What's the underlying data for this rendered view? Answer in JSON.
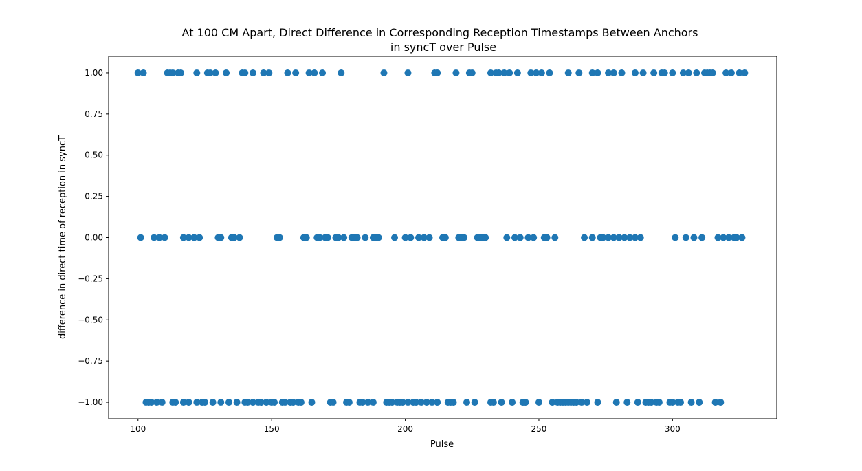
{
  "chart_data": {
    "type": "scatter",
    "title_line1": "At 100 CM Apart, Direct Difference in Corresponding Reception Timestamps Between Anchors",
    "title_line2": "in syncT over Pulse",
    "xlabel": "Pulse",
    "ylabel": "difference in direct time of reception in syncT",
    "xlim": [
      89,
      339
    ],
    "ylim": [
      -1.1,
      1.1
    ],
    "xticks": [
      100,
      150,
      200,
      250,
      300
    ],
    "xtick_labels": [
      "100",
      "150",
      "200",
      "250",
      "300"
    ],
    "yticks": [
      1.0,
      0.75,
      0.5,
      0.25,
      0.0,
      -0.25,
      -0.5,
      -0.75,
      -1.0
    ],
    "ytick_labels": [
      "1.00",
      "0.75",
      "0.50",
      "0.25",
      "0.00",
      "−0.25",
      "−0.50",
      "−0.75",
      "−1.00"
    ],
    "grid": false,
    "marker_color": "#1f77b4",
    "series": [
      {
        "x": [
          100,
          102,
          111,
          112,
          113,
          115,
          116,
          122,
          126,
          127,
          129,
          133,
          139,
          140,
          143,
          147,
          149,
          156,
          159,
          164,
          166,
          169,
          176,
          192,
          201,
          211,
          212,
          219,
          224,
          225,
          232,
          234,
          235,
          237,
          239,
          242,
          247,
          249,
          251,
          254,
          261,
          265,
          270,
          272,
          276,
          278,
          281,
          286,
          289,
          293,
          296,
          297,
          300,
          304,
          306,
          309,
          312,
          313,
          314,
          315,
          320,
          322,
          325,
          327
        ],
        "y": [
          1,
          1,
          1,
          1,
          1,
          1,
          1,
          1,
          1,
          1,
          1,
          1,
          1,
          1,
          1,
          1,
          1,
          1,
          1,
          1,
          1,
          1,
          1,
          1,
          1,
          1,
          1,
          1,
          1,
          1,
          1,
          1,
          1,
          1,
          1,
          1,
          1,
          1,
          1,
          1,
          1,
          1,
          1,
          1,
          1,
          1,
          1,
          1,
          1,
          1,
          1,
          1,
          1,
          1,
          1,
          1,
          1,
          1,
          1,
          1,
          1,
          1,
          1,
          1
        ]
      },
      {
        "x": [
          101,
          106,
          108,
          110,
          117,
          119,
          121,
          123,
          130,
          131,
          135,
          136,
          138,
          152,
          153,
          162,
          163,
          167,
          168,
          170,
          171,
          174,
          175,
          177,
          180,
          181,
          182,
          185,
          188,
          189,
          190,
          196,
          200,
          202,
          205,
          207,
          209,
          214,
          215,
          220,
          221,
          222,
          227,
          228,
          229,
          230,
          238,
          241,
          243,
          246,
          248,
          252,
          253,
          256,
          267,
          270,
          273,
          274,
          276,
          278,
          280,
          282,
          284,
          286,
          288,
          301,
          305,
          308,
          311,
          317,
          319,
          321,
          323,
          324,
          326
        ],
        "y": [
          0,
          0,
          0,
          0,
          0,
          0,
          0,
          0,
          0,
          0,
          0,
          0,
          0,
          0,
          0,
          0,
          0,
          0,
          0,
          0,
          0,
          0,
          0,
          0,
          0,
          0,
          0,
          0,
          0,
          0,
          0,
          0,
          0,
          0,
          0,
          0,
          0,
          0,
          0,
          0,
          0,
          0,
          0,
          0,
          0,
          0,
          0,
          0,
          0,
          0,
          0,
          0,
          0,
          0,
          0,
          0,
          0,
          0,
          0,
          0,
          0,
          0,
          0,
          0,
          0,
          0,
          0,
          0,
          0,
          0,
          0,
          0,
          0,
          0,
          0
        ]
      },
      {
        "x": [
          103,
          104,
          105,
          107,
          109,
          113,
          114,
          117,
          119,
          122,
          124,
          125,
          128,
          131,
          134,
          137,
          140,
          141,
          143,
          145,
          146,
          148,
          150,
          151,
          154,
          155,
          157,
          158,
          160,
          161,
          165,
          172,
          173,
          178,
          179,
          183,
          184,
          186,
          188,
          193,
          194,
          195,
          197,
          198,
          199,
          201,
          203,
          204,
          206,
          208,
          210,
          212,
          216,
          217,
          218,
          223,
          226,
          232,
          233,
          236,
          240,
          244,
          245,
          250,
          255,
          257,
          258,
          259,
          260,
          261,
          262,
          263,
          264,
          266,
          268,
          272,
          279,
          283,
          287,
          290,
          291,
          292,
          294,
          295,
          299,
          300,
          302,
          303,
          307,
          310,
          316,
          318
        ],
        "y": [
          -1,
          -1,
          -1,
          -1,
          -1,
          -1,
          -1,
          -1,
          -1,
          -1,
          -1,
          -1,
          -1,
          -1,
          -1,
          -1,
          -1,
          -1,
          -1,
          -1,
          -1,
          -1,
          -1,
          -1,
          -1,
          -1,
          -1,
          -1,
          -1,
          -1,
          -1,
          -1,
          -1,
          -1,
          -1,
          -1,
          -1,
          -1,
          -1,
          -1,
          -1,
          -1,
          -1,
          -1,
          -1,
          -1,
          -1,
          -1,
          -1,
          -1,
          -1,
          -1,
          -1,
          -1,
          -1,
          -1,
          -1,
          -1,
          -1,
          -1,
          -1,
          -1,
          -1,
          -1,
          -1,
          -1,
          -1,
          -1,
          -1,
          -1,
          -1,
          -1,
          -1,
          -1,
          -1,
          -1,
          -1,
          -1,
          -1,
          -1,
          -1,
          -1,
          -1,
          -1,
          -1,
          -1,
          -1,
          -1,
          -1,
          -1,
          -1,
          -1
        ]
      }
    ]
  }
}
